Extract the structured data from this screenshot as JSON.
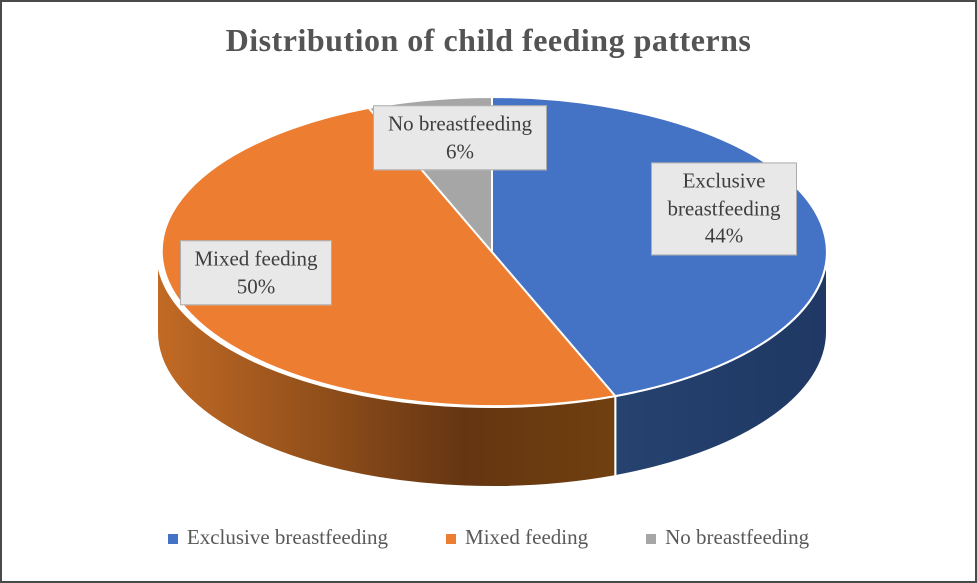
{
  "chart_data": {
    "type": "pie",
    "is_3d": true,
    "title": "Distribution of child feeding patterns",
    "direction": "clockwise",
    "start_angle_deg": 0,
    "legend_position": "bottom",
    "background": "#ffffff",
    "slices": [
      {
        "label": "Exclusive breastfeeding",
        "value": 44,
        "pct_label": "44%",
        "color": "#4472C4",
        "side_gradient": [
          "#26426F",
          "#1F3864"
        ]
      },
      {
        "label": "Mixed feeding",
        "value": 50,
        "pct_label": "50%",
        "color": "#ED7D31",
        "side_gradient": [
          "#C26A25",
          "#94511B",
          "#653512",
          "#70400F"
        ]
      },
      {
        "label": "No breastfeeding",
        "value": 6,
        "pct_label": "6%",
        "color": "#A6A6A6",
        "side_gradient": [
          "#8C8C8C",
          "#787878"
        ]
      }
    ],
    "title_color": "#545454",
    "legend_text_color": "#595959",
    "label_box_bg": "#E9E8E8",
    "label_box_border": "#ACACAC"
  }
}
